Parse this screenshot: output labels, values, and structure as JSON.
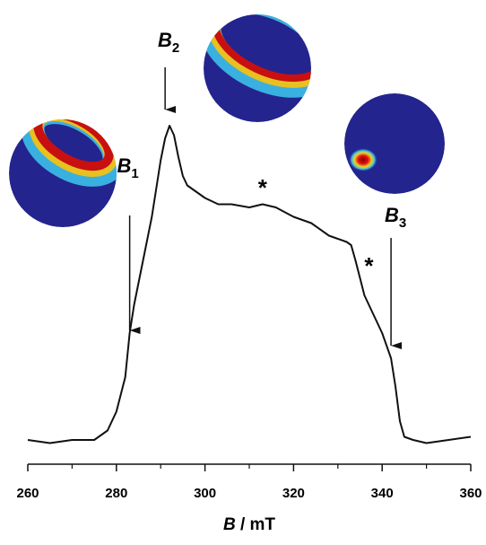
{
  "chart_data": {
    "type": "line",
    "x": [
      260,
      265,
      270,
      275,
      278,
      280,
      282,
      283,
      284,
      286,
      288,
      290,
      291,
      292,
      293,
      294,
      295,
      296,
      298,
      300,
      303,
      306,
      310,
      313,
      316,
      320,
      324,
      328,
      332,
      333,
      334,
      336,
      338,
      340,
      342,
      343,
      344,
      345,
      347,
      350,
      355,
      360
    ],
    "series": [
      {
        "color": "#111111",
        "values": [
          0,
          -0.01,
          0,
          0,
          0.03,
          0.09,
          0.2,
          0.34,
          0.43,
          0.57,
          0.71,
          0.89,
          0.96,
          1.0,
          0.97,
          0.9,
          0.84,
          0.81,
          0.79,
          0.77,
          0.75,
          0.75,
          0.74,
          0.75,
          0.74,
          0.71,
          0.69,
          0.65,
          0.63,
          0.62,
          0.57,
          0.46,
          0.4,
          0.34,
          0.26,
          0.17,
          0.06,
          0.01,
          0,
          -0.01,
          0,
          0.01
        ]
      }
    ],
    "xlim": [
      260,
      360
    ],
    "xticks": [
      260,
      280,
      300,
      320,
      340,
      360
    ],
    "xminorticks": [
      270,
      290,
      310,
      330,
      350
    ],
    "ylim": [
      0,
      1
    ],
    "xlabel": [
      "B",
      " / mT"
    ],
    "annotations": [
      {
        "text": "B",
        "subscript": "1",
        "x": 283
      },
      {
        "text": "B",
        "subscript": "2",
        "x": 291
      },
      {
        "text": "B",
        "subscript": "3",
        "x": 342
      },
      {
        "text": "*",
        "x": 313
      },
      {
        "text": "*",
        "x": 337
      }
    ]
  }
}
